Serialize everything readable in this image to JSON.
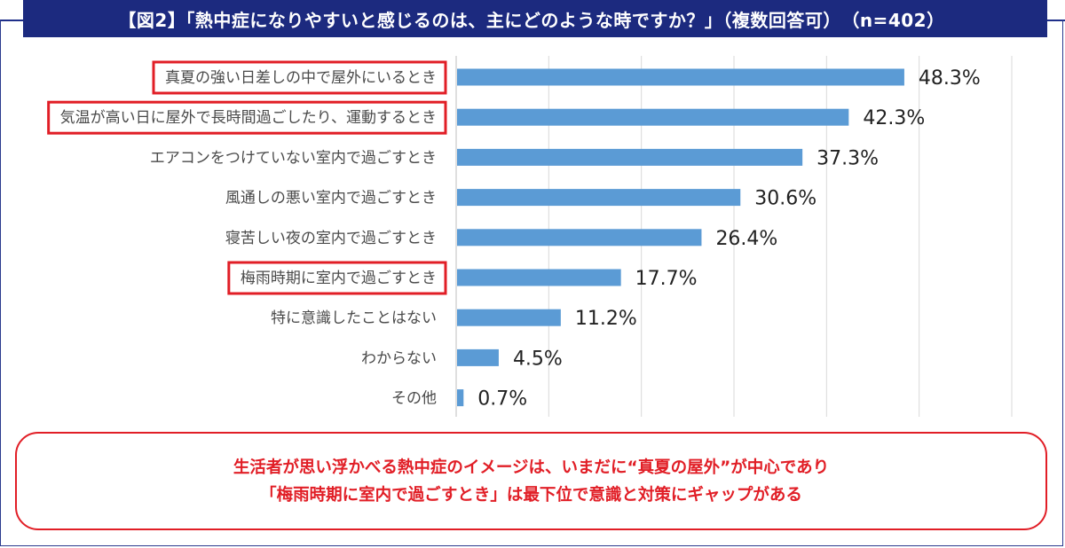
{
  "title": "【図2】「熱中症になりやすいと感じるのは、主にどのような時ですか？」（複数回答可）　（n=402）",
  "colors": {
    "bar": "#5b9bd5",
    "highlight": "#e11e26",
    "title_bg": "#1c2a7f"
  },
  "chart_data": {
    "type": "bar",
    "orientation": "horizontal",
    "categories": [
      "真夏の強い日差しの中で屋外にいるとき",
      "気温が高い日に屋外で長時間過ごしたり、運動するとき",
      "エアコンをつけていない室内で過ごすとき",
      "風通しの悪い室内で過ごすとき",
      "寝苦しい夜の室内で過ごすとき",
      "梅雨時期に室内で過ごすとき",
      "特に意識したことはない",
      "わからない",
      "その他"
    ],
    "values": [
      48.3,
      42.3,
      37.3,
      30.6,
      26.4,
      17.7,
      11.2,
      4.5,
      0.7
    ],
    "data_labels": [
      "48.3%",
      "42.3%",
      "37.3%",
      "30.6%",
      "26.4%",
      "17.7%",
      "11.2%",
      "4.5%",
      "0.7%"
    ],
    "highlighted": [
      0,
      1,
      5
    ],
    "xlim": [
      0,
      60
    ],
    "grid": true,
    "title": "【図2】「熱中症になりやすいと感じるのは、主にどのような時ですか？」（複数回答可）　（n=402）"
  },
  "note": {
    "line1": "生活者が思い浮かべる熱中症のイメージは、いまだに“真夏の屋外”が中心であり",
    "line2": "「梅雨時期に室内で過ごすとき」は最下位で意識と対策にギャップがある"
  }
}
